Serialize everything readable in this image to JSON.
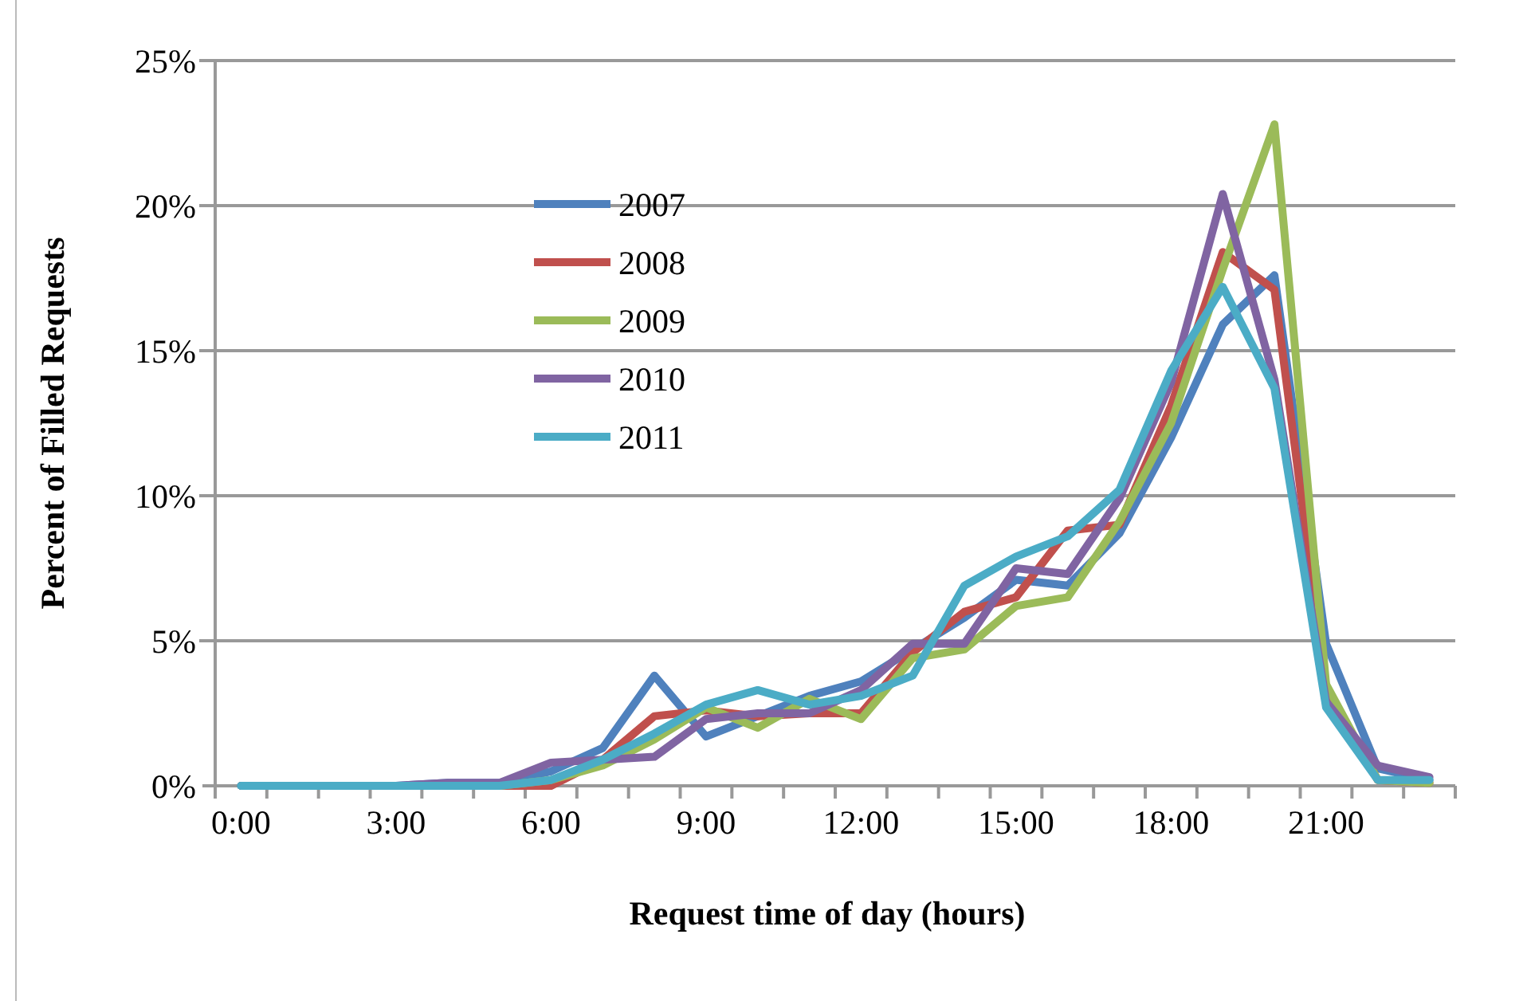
{
  "chart_data": {
    "type": "line",
    "xlabel": "Request time of day (hours)",
    "ylabel": "Percent of Filled Requests",
    "x": [
      0,
      1,
      2,
      3,
      4,
      5,
      6,
      7,
      8,
      9,
      10,
      11,
      12,
      13,
      14,
      15,
      16,
      17,
      18,
      19,
      20,
      21,
      22,
      23
    ],
    "xlim": [
      -0.5,
      23.5
    ],
    "xticks": [
      {
        "value": 0,
        "label": "0:00"
      },
      {
        "value": 3,
        "label": "3:00"
      },
      {
        "value": 6,
        "label": "6:00"
      },
      {
        "value": 9,
        "label": "9:00"
      },
      {
        "value": 12,
        "label": "12:00"
      },
      {
        "value": 15,
        "label": "15:00"
      },
      {
        "value": 18,
        "label": "18:00"
      },
      {
        "value": 21,
        "label": "21:00"
      }
    ],
    "ylim": [
      0,
      25
    ],
    "yticks": [
      {
        "value": 0,
        "label": "0%"
      },
      {
        "value": 5,
        "label": "5%"
      },
      {
        "value": 10,
        "label": "10%"
      },
      {
        "value": 15,
        "label": "15%"
      },
      {
        "value": 20,
        "label": "20%"
      },
      {
        "value": 25,
        "label": "25%"
      }
    ],
    "grid": "y",
    "legend": "top left",
    "marker": "none",
    "line_style": "solid",
    "series": [
      {
        "name": "2007",
        "color": "#4f81bd",
        "values": [
          0,
          0,
          0,
          0,
          0.1,
          0.1,
          0.5,
          1.3,
          3.8,
          1.7,
          2.4,
          3.1,
          3.6,
          4.7,
          5.8,
          7.1,
          6.9,
          8.7,
          12.0,
          15.9,
          17.6,
          4.9,
          0.6,
          0.2
        ]
      },
      {
        "name": "2008",
        "color": "#c0504d",
        "values": [
          null,
          null,
          null,
          null,
          0,
          0,
          0,
          0.9,
          2.4,
          2.6,
          2.4,
          2.5,
          2.5,
          4.6,
          6.0,
          6.5,
          8.8,
          9.0,
          13.1,
          18.4,
          17.1,
          3.4,
          0.2,
          0.1
        ]
      },
      {
        "name": "2009",
        "color": "#9bbb59",
        "values": [
          0,
          0,
          0,
          0,
          0,
          0,
          0.2,
          0.7,
          1.6,
          2.7,
          2.0,
          3.0,
          2.3,
          4.4,
          4.7,
          6.2,
          6.5,
          9.1,
          12.5,
          17.8,
          22.8,
          3.5,
          0.2,
          0.1
        ]
      },
      {
        "name": "2010",
        "color": "#8064a2",
        "values": [
          0,
          0,
          0,
          0,
          0.1,
          0.1,
          0.8,
          0.9,
          1.0,
          2.3,
          2.5,
          2.5,
          3.3,
          4.9,
          4.9,
          7.5,
          7.3,
          9.9,
          13.9,
          20.4,
          14.0,
          2.9,
          0.7,
          0.3
        ]
      },
      {
        "name": "2011",
        "color": "#4bacc6",
        "values": [
          0,
          0,
          0,
          0,
          0,
          0,
          0.2,
          0.9,
          1.8,
          2.8,
          3.3,
          2.8,
          3.1,
          3.8,
          6.9,
          7.9,
          8.6,
          10.2,
          14.3,
          17.2,
          13.7,
          2.7,
          0.2,
          0.2
        ]
      }
    ]
  }
}
